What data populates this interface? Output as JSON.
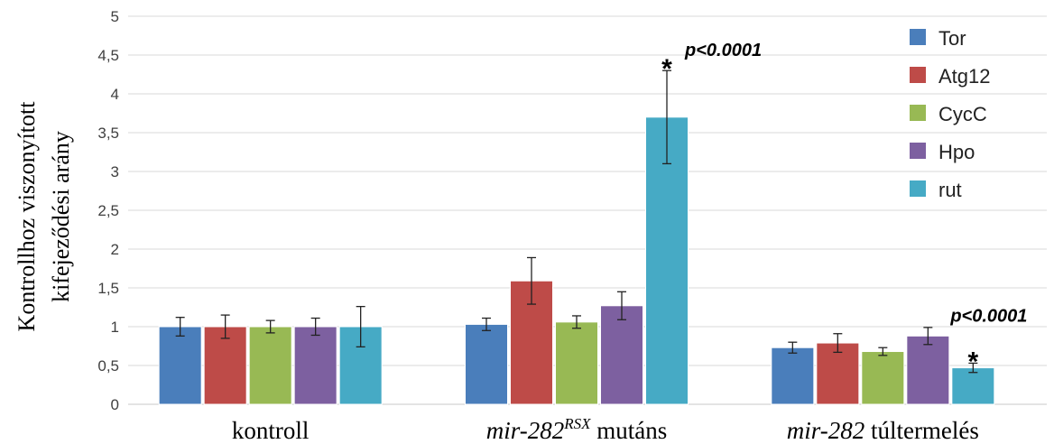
{
  "chart_data": {
    "type": "bar",
    "ylabel_lines": [
      "Kontrollhoz viszonyított",
      "kifejeződési arány"
    ],
    "ylim": [
      0,
      5
    ],
    "yticks": [
      "0",
      "0,5",
      "1",
      "1,5",
      "2",
      "2,5",
      "3",
      "3,5",
      "4",
      "4,5",
      "5"
    ],
    "grid": true,
    "legend_position": "top-right",
    "categories": [
      {
        "italic": "",
        "sup": "",
        "normal": "kontroll"
      },
      {
        "italic": "mir-282",
        "sup": "RSX",
        "normal": " mutáns"
      },
      {
        "italic": "mir-282",
        "sup": "",
        "normal": " túltermelés"
      }
    ],
    "series": [
      {
        "name": "Tor",
        "color": "#4a7ebb",
        "values": [
          1.0,
          1.03,
          0.73
        ],
        "errors": [
          0.12,
          0.08,
          0.07
        ]
      },
      {
        "name": "Atg12",
        "color": "#be4b48",
        "values": [
          1.0,
          1.59,
          0.79
        ],
        "errors": [
          0.15,
          0.3,
          0.12
        ]
      },
      {
        "name": "CycC",
        "color": "#98b954",
        "values": [
          1.0,
          1.06,
          0.68
        ],
        "errors": [
          0.08,
          0.08,
          0.05
        ]
      },
      {
        "name": "Hpo",
        "color": "#7d60a0",
        "values": [
          1.0,
          1.27,
          0.88
        ],
        "errors": [
          0.11,
          0.18,
          0.11
        ]
      },
      {
        "name": "rut",
        "color": "#46aac5",
        "values": [
          1.0,
          3.7,
          0.47
        ],
        "errors": [
          0.26,
          0.6,
          0.06
        ]
      }
    ],
    "annotations": [
      {
        "category": 1,
        "series": 4,
        "star": "*",
        "text": "p<0.0001"
      },
      {
        "category": 2,
        "series": 4,
        "star": "*",
        "text": "p<0.0001"
      }
    ]
  }
}
